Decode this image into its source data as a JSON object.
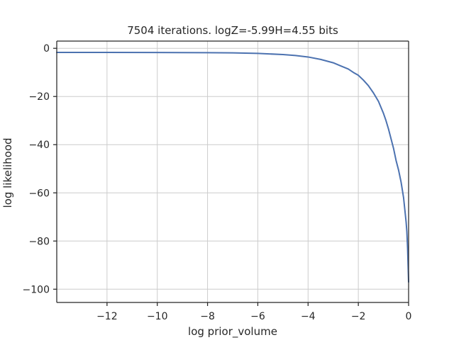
{
  "chart_data": {
    "type": "line",
    "title": "7504 iterations. logZ=-5.99H=4.55 bits",
    "xlabel": "log prior_volume",
    "ylabel": "log likelihood",
    "xlim": [
      -14.0,
      0.0
    ],
    "ylim": [
      -105.5,
      3.0
    ],
    "xticks": [
      -12,
      -10,
      -8,
      -6,
      -4,
      -2,
      0
    ],
    "xtick_labels": [
      "−12",
      "−10",
      "−8",
      "−6",
      "−4",
      "−2",
      "0"
    ],
    "yticks": [
      0,
      -20,
      -40,
      -60,
      -80,
      -100
    ],
    "ytick_labels": [
      "0",
      "−20",
      "−40",
      "−60",
      "−80",
      "−100"
    ],
    "grid": true,
    "legend": "none",
    "line_color": "#4c72b0",
    "series": [
      {
        "x": [
          -14.0,
          -12.0,
          -10.0,
          -8.0,
          -7.0,
          -6.0,
          -5.0,
          -4.5,
          -4.0,
          -3.5,
          -3.0,
          -2.7,
          -2.4,
          -2.2,
          -2.0,
          -1.8,
          -1.6,
          -1.4,
          -1.2,
          -1.0,
          -0.9,
          -0.8,
          -0.7,
          -0.6,
          -0.5,
          -0.4,
          -0.3,
          -0.2,
          -0.15,
          -0.1,
          -0.07,
          -0.04,
          -0.02,
          0.0
        ],
        "y": [
          -1.7,
          -1.7,
          -1.75,
          -1.8,
          -1.9,
          -2.1,
          -2.6,
          -3.0,
          -3.6,
          -4.6,
          -6.0,
          -7.3,
          -8.6,
          -10.0,
          -11.2,
          -13.2,
          -15.5,
          -18.5,
          -22.0,
          -27.0,
          -30.0,
          -33.5,
          -37.5,
          -41.5,
          -46.5,
          -50.5,
          -55.5,
          -62.0,
          -67.0,
          -72.0,
          -76.0,
          -83.0,
          -90.0,
          -97.0
        ]
      }
    ]
  }
}
